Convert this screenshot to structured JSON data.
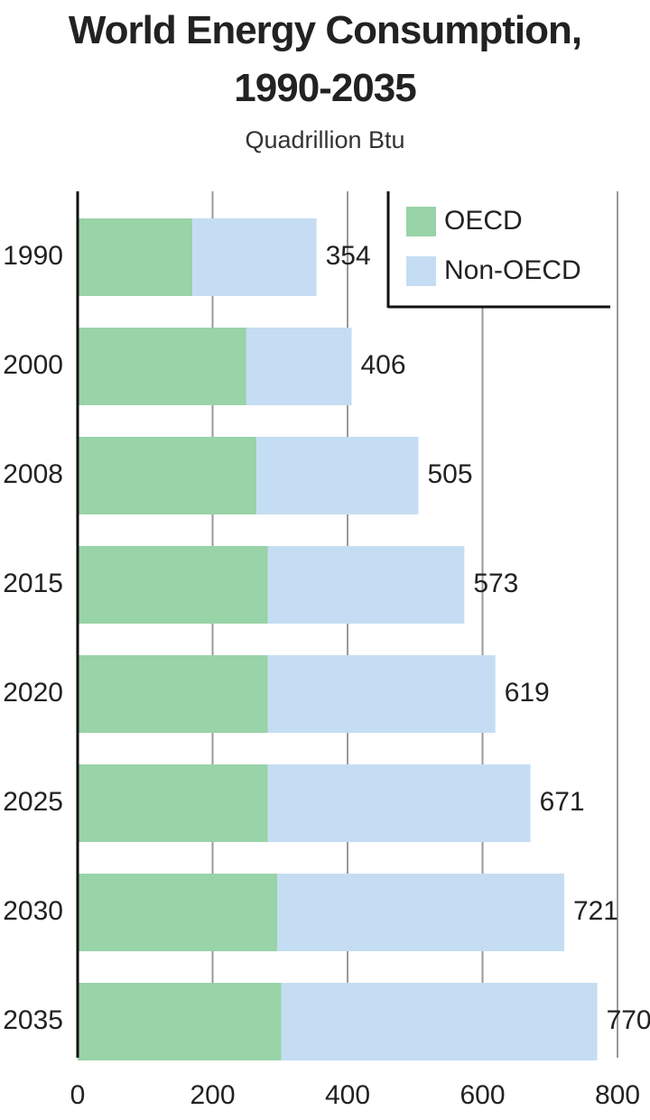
{
  "chart_data": {
    "type": "stacked-barh",
    "title": "World Energy Consumption, 1990-2035",
    "subtitle": "Quadrillion Btu",
    "categories": [
      "1990",
      "2000",
      "2008",
      "2015",
      "2020",
      "2025",
      "2030",
      "2035"
    ],
    "series": [
      {
        "name": "OECD",
        "color": "#99d3a8",
        "values": [
          170,
          250,
          265,
          282,
          282,
          282,
          296,
          302
        ]
      },
      {
        "name": "Non-OECD",
        "color": "#c5ddf2",
        "values": [
          184,
          156,
          240,
          291,
          337,
          389,
          425,
          468
        ]
      }
    ],
    "totals": [
      354,
      406,
      505,
      573,
      619,
      671,
      721,
      770
    ],
    "xlim": [
      0,
      800
    ],
    "xticks": [
      0,
      200,
      400,
      600,
      800
    ],
    "grid": true,
    "legend": "top-right"
  }
}
